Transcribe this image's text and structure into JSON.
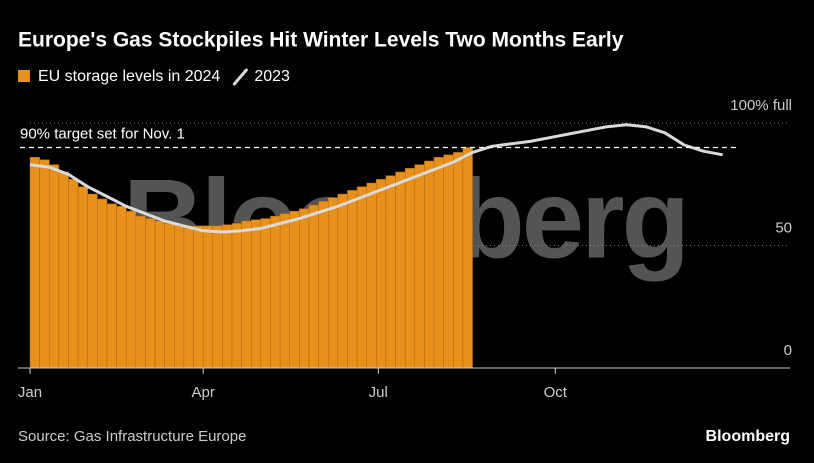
{
  "chart_data": {
    "type": "combo",
    "title": "Europe's Gas Stockpiles Hit Winter Levels Two Months Early",
    "source": "Source: Gas Infrastructure Europe",
    "brand": "Bloomberg",
    "watermark": "Bloomberg",
    "xlim": [
      0,
      395
    ],
    "xticks": [
      {
        "value": 0,
        "label": "Jan"
      },
      {
        "value": 90,
        "label": "Apr"
      },
      {
        "value": 181,
        "label": "Jul"
      },
      {
        "value": 273,
        "label": "Oct"
      }
    ],
    "ylim": [
      0,
      100
    ],
    "yticks": [
      {
        "value": 0,
        "label": "0"
      },
      {
        "value": 50,
        "label": "50"
      },
      {
        "value": 100,
        "label": "100% full"
      }
    ],
    "grid": true,
    "annotation": {
      "text": "90% target set for Nov. 1",
      "value": 90
    },
    "series": [
      {
        "name": "EU storage levels in 2024",
        "type": "bar",
        "color": "#e8901c",
        "x": [
          0,
          5,
          10,
          15,
          20,
          25,
          30,
          35,
          40,
          45,
          50,
          55,
          60,
          65,
          70,
          75,
          80,
          85,
          90,
          95,
          100,
          105,
          110,
          115,
          120,
          125,
          130,
          135,
          140,
          145,
          150,
          155,
          160,
          165,
          170,
          175,
          180,
          185,
          190,
          195,
          200,
          205,
          210,
          215,
          220,
          225
        ],
        "values": [
          86,
          85,
          83,
          80,
          77,
          74,
          71,
          69,
          67,
          66,
          64,
          62,
          61,
          60,
          59,
          58.5,
          58,
          58,
          58,
          58,
          58.5,
          59,
          60,
          60.5,
          61,
          62,
          63,
          64,
          65,
          66.5,
          68,
          69.5,
          71,
          72.5,
          74,
          75.5,
          77,
          78.5,
          80,
          81.5,
          83,
          84.5,
          86,
          87,
          88,
          90
        ]
      },
      {
        "name": "2023",
        "type": "line",
        "color": "#d9d9d9",
        "x": [
          0,
          10,
          20,
          30,
          40,
          50,
          60,
          70,
          80,
          90,
          100,
          110,
          120,
          130,
          140,
          150,
          160,
          170,
          180,
          190,
          200,
          210,
          220,
          230,
          240,
          250,
          260,
          270,
          280,
          290,
          300,
          310,
          320,
          330,
          340,
          350,
          360
        ],
        "values": [
          83,
          82,
          79,
          74,
          70,
          66,
          63,
          60,
          58,
          56,
          55.5,
          56,
          57,
          59,
          61,
          63.5,
          66,
          69,
          72,
          75,
          78,
          81,
          84,
          88,
          90.5,
          91.5,
          92.5,
          94,
          95.5,
          97,
          98.5,
          99.3,
          98.5,
          96,
          91,
          88.5,
          87
        ]
      }
    ]
  }
}
